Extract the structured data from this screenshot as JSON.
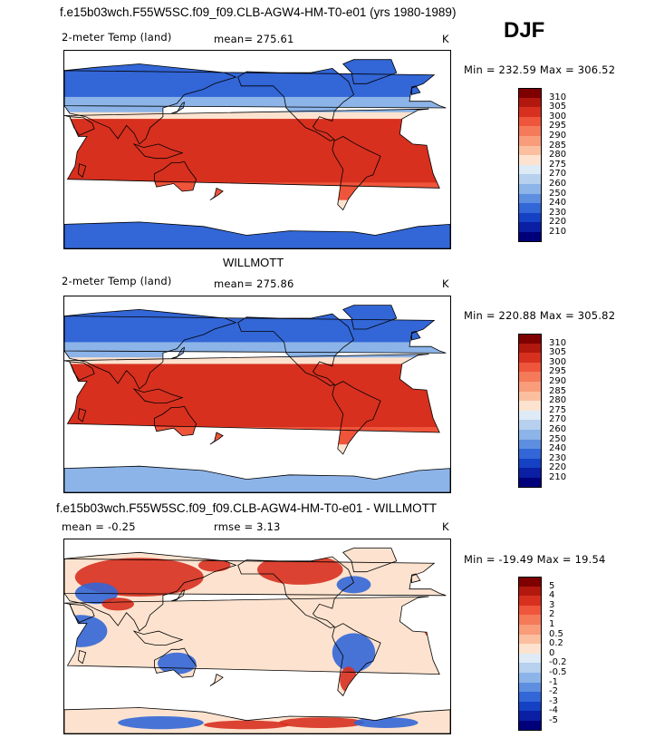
{
  "figure": {
    "title": "f.e15b03wch.F55W5SC.f09_f09.CLB-AGW4-HM-T0-e01 (yrs 1980-1989)",
    "season": "DJF"
  },
  "panels": [
    {
      "id": "model",
      "header_left": "2-meter Temp (land)",
      "header_mid": "mean= 275.61",
      "header_right": "K",
      "minmax": "Min = 232.59 Max = 306.52",
      "scale": "abs"
    },
    {
      "id": "obs",
      "title": "WILLMOTT",
      "header_left": "2-meter Temp (land)",
      "header_mid": "mean= 275.86",
      "header_right": "K",
      "minmax": "Min = 220.88 Max = 305.82",
      "scale": "abs"
    },
    {
      "id": "diff",
      "title": "f.e15b03wch.F55W5SC.f09_f09.CLB-AGW4-HM-T0-e01 - WILLMOTT",
      "header_left": "mean =   -0.25",
      "header_mid": "rmse =    3.13",
      "header_right": "K",
      "minmax": "Min = -19.49 Max =  19.54",
      "scale": "diff"
    }
  ],
  "colorbars": {
    "abs": {
      "labels": [
        "310",
        "305",
        "300",
        "295",
        "290",
        "285",
        "280",
        "275",
        "270",
        "260",
        "250",
        "240",
        "230",
        "220",
        "210"
      ],
      "colors": [
        "#7f0000",
        "#b2180e",
        "#d7301f",
        "#ef553b",
        "#f47a5a",
        "#f89c7a",
        "#fbbfa0",
        "#fde3cf",
        "#deebf7",
        "#b6d0ee",
        "#8cb4e8",
        "#5d8ee0",
        "#3366d6",
        "#1541c4",
        "#0a1fa3",
        "#00007a"
      ]
    },
    "diff": {
      "labels": [
        "5",
        "4",
        "3",
        "2",
        "1",
        "0.5",
        "0.2",
        "0",
        "-0.2",
        "-0.5",
        "-1",
        "-2",
        "-3",
        "-4",
        "-5"
      ],
      "colors": [
        "#7f0000",
        "#b2180e",
        "#d7301f",
        "#ef553b",
        "#f47a5a",
        "#f89c7a",
        "#fbbfa0",
        "#fde3cf",
        "#deebf7",
        "#b6d0ee",
        "#8cb4e8",
        "#5d8ee0",
        "#3366d6",
        "#1541c4",
        "#0a1fa3",
        "#00007a"
      ]
    }
  },
  "map_colors": {
    "ocean": "#ffffff",
    "cold": "#3366d6",
    "cool": "#8cb4e8",
    "mild": "#fde3cf",
    "warm": "#ef553b",
    "hot": "#d7301f",
    "diff_pos": "#d7301f",
    "diff_neg": "#3366d6",
    "diff_zero": "#fde3cf"
  }
}
